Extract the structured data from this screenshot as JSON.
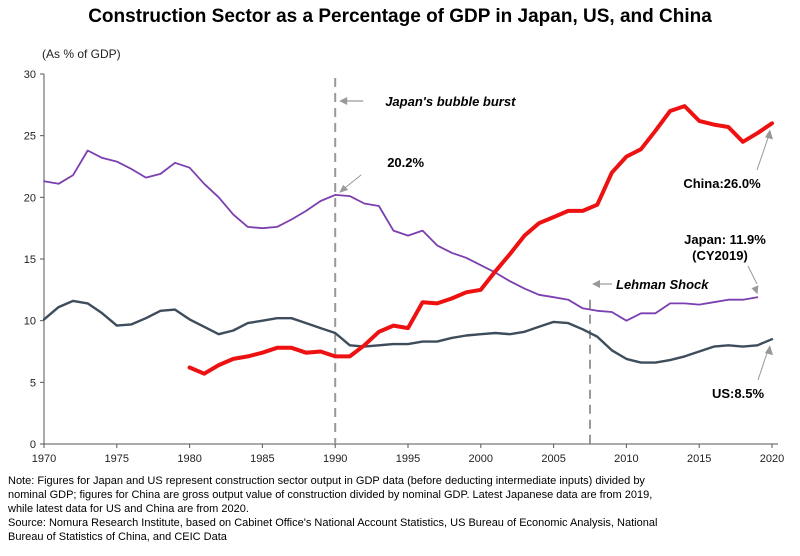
{
  "chart_data": {
    "type": "line",
    "title": "Construction Sector as a Percentage of GDP in Japan, US, and China",
    "ylabel": "(As % of GDP)",
    "xlim": [
      1970,
      2020
    ],
    "ylim": [
      0,
      30
    ],
    "xticks": [
      1970,
      1975,
      1980,
      1985,
      1990,
      1995,
      2000,
      2005,
      2010,
      2015,
      2020
    ],
    "yticks": [
      0,
      5,
      10,
      15,
      20,
      25,
      30
    ],
    "grid": false,
    "colors": {
      "japan": "#7b3fb0",
      "us": "#3d4d5c",
      "china": "#ee1111",
      "marker": "#999999"
    },
    "series": [
      {
        "key": "japan",
        "x": [
          1970,
          1971,
          1972,
          1973,
          1974,
          1975,
          1976,
          1977,
          1978,
          1979,
          1980,
          1981,
          1982,
          1983,
          1984,
          1985,
          1986,
          1987,
          1988,
          1989,
          1990,
          1991,
          1992,
          1993,
          1994,
          1995,
          1996,
          1997,
          1998,
          1999,
          2000,
          2001,
          2002,
          2003,
          2004,
          2005,
          2006,
          2007,
          2008,
          2009,
          2010,
          2011,
          2012,
          2013,
          2014,
          2015,
          2016,
          2017,
          2018,
          2019
        ],
        "values": [
          21.3,
          21.1,
          21.8,
          23.8,
          23.2,
          22.9,
          22.3,
          21.6,
          21.9,
          22.8,
          22.4,
          21.1,
          20.0,
          18.6,
          17.6,
          17.5,
          17.6,
          18.2,
          18.9,
          19.7,
          20.2,
          20.1,
          19.5,
          19.3,
          17.3,
          16.9,
          17.3,
          16.1,
          15.5,
          15.1,
          14.5,
          13.9,
          13.2,
          12.6,
          12.1,
          11.9,
          11.7,
          11.0,
          10.8,
          10.7,
          10.0,
          10.6,
          10.6,
          11.4,
          11.4,
          11.3,
          11.5,
          11.7,
          11.7,
          11.9
        ]
      },
      {
        "key": "us",
        "x": [
          1970,
          1971,
          1972,
          1973,
          1974,
          1975,
          1976,
          1977,
          1978,
          1979,
          1980,
          1981,
          1982,
          1983,
          1984,
          1985,
          1986,
          1987,
          1988,
          1989,
          1990,
          1991,
          1992,
          1993,
          1994,
          1995,
          1996,
          1997,
          1998,
          1999,
          2000,
          2001,
          2002,
          2003,
          2004,
          2005,
          2006,
          2007,
          2008,
          2009,
          2010,
          2011,
          2012,
          2013,
          2014,
          2015,
          2016,
          2017,
          2018,
          2019,
          2020
        ],
        "values": [
          10.1,
          11.1,
          11.6,
          11.4,
          10.6,
          9.6,
          9.7,
          10.2,
          10.8,
          10.9,
          10.1,
          9.5,
          8.9,
          9.2,
          9.8,
          10.0,
          10.2,
          10.2,
          9.8,
          9.4,
          9.0,
          8.0,
          7.9,
          8.0,
          8.1,
          8.1,
          8.3,
          8.3,
          8.6,
          8.8,
          8.9,
          9.0,
          8.9,
          9.1,
          9.5,
          9.9,
          9.8,
          9.3,
          8.7,
          7.6,
          6.9,
          6.6,
          6.6,
          6.8,
          7.1,
          7.5,
          7.9,
          8.0,
          7.9,
          8.0,
          8.5
        ]
      },
      {
        "key": "china",
        "x": [
          1980,
          1981,
          1982,
          1983,
          1984,
          1985,
          1986,
          1987,
          1988,
          1989,
          1990,
          1991,
          1992,
          1993,
          1994,
          1995,
          1996,
          1997,
          1998,
          1999,
          2000,
          2001,
          2002,
          2003,
          2004,
          2005,
          2006,
          2007,
          2008,
          2009,
          2010,
          2011,
          2012,
          2013,
          2014,
          2015,
          2016,
          2017,
          2018,
          2019,
          2020
        ],
        "values": [
          6.2,
          5.7,
          6.4,
          6.9,
          7.1,
          7.4,
          7.8,
          7.8,
          7.4,
          7.5,
          7.1,
          7.1,
          8.0,
          9.1,
          9.6,
          9.4,
          11.5,
          11.4,
          11.8,
          12.3,
          12.5,
          14.0,
          15.4,
          16.9,
          17.9,
          18.4,
          18.9,
          18.9,
          19.4,
          22.0,
          23.3,
          23.9,
          25.4,
          27.0,
          27.4,
          26.2,
          25.9,
          25.7,
          24.5,
          25.2,
          26.0
        ]
      }
    ],
    "vlines": [
      {
        "x": 1990,
        "label": "Japan's bubble burst"
      },
      {
        "x": 2007.5,
        "label": "Lehman Shock"
      }
    ],
    "annotations": {
      "japan_peak": "20.2%",
      "japan_end_line1": "Japan: 11.9%",
      "japan_end_line2": "(CY2019)",
      "china_end": "China:26.0%",
      "us_end": "US:8.5%"
    }
  },
  "note": {
    "line1": "Note: Figures for Japan and US represent construction sector output in GDP data (before deducting intermediate inputs) divided by",
    "line2": "nominal GDP; figures for China are gross output value of construction divided by nominal GDP. Latest Japanese data are from 2019,",
    "line3": "while latest data for US and China are from 2020.",
    "line4": "Source: Nomura Research Institute, based on Cabinet Office's National Account Statistics, US Bureau of Economic Analysis, National",
    "line5": "Bureau of Statistics of China, and CEIC Data"
  }
}
